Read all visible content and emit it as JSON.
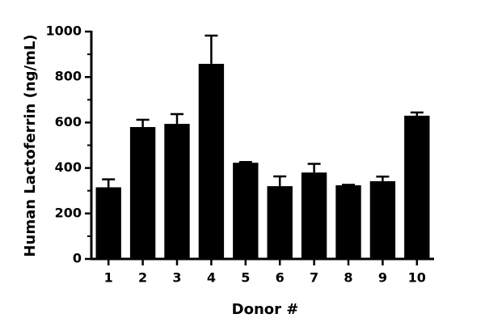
{
  "chart_data": {
    "type": "bar",
    "ylabel": "Human Lactoferrin (ng/mL)",
    "xlabel": "Donor #",
    "categories": [
      "1",
      "2",
      "3",
      "4",
      "5",
      "6",
      "7",
      "8",
      "9",
      "10"
    ],
    "values": [
      315,
      580,
      594,
      858,
      423,
      320,
      380,
      324,
      342,
      630
    ],
    "errors": [
      35,
      32,
      43,
      124,
      3,
      43,
      38,
      2,
      20,
      14
    ],
    "color": "#000000",
    "ylim": [
      0,
      1000
    ],
    "yticks": [
      0,
      200,
      400,
      600,
      800,
      1000
    ],
    "yminorticks": [
      100,
      300,
      500,
      700,
      900
    ]
  }
}
